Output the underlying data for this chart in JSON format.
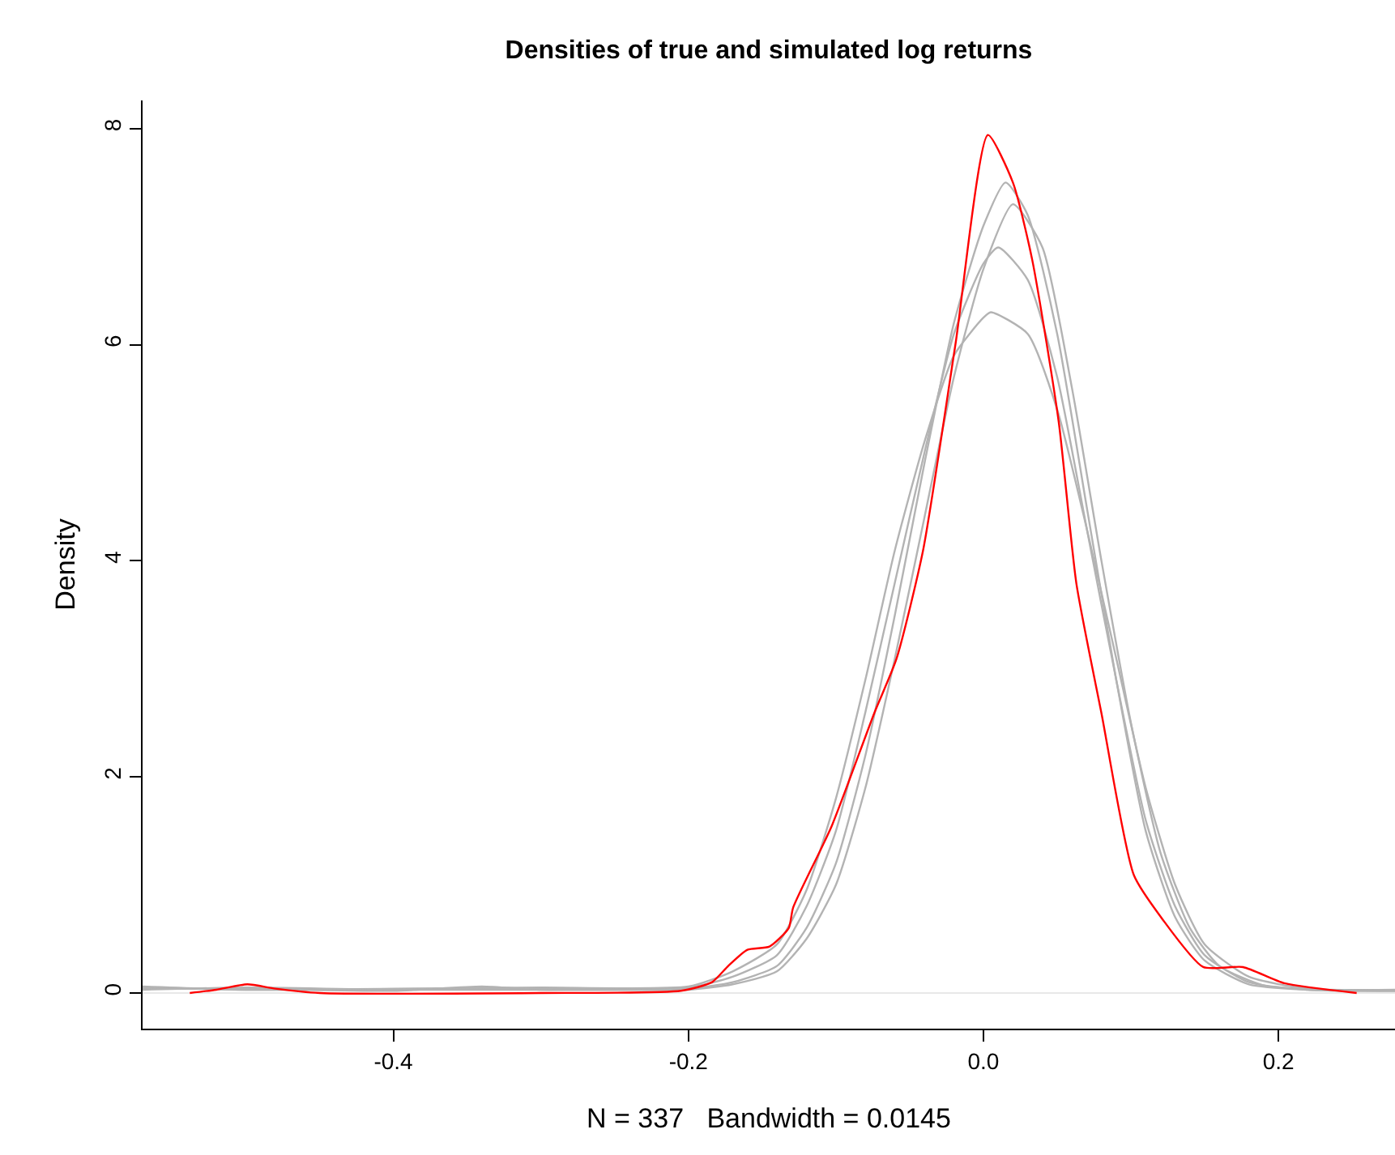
{
  "chart_data": {
    "type": "line",
    "title": "Densities of true and simulated log returns",
    "xlabel": "N = 337   Bandwidth = 0.0145",
    "ylabel": "Density",
    "xlim": [
      -0.57,
      0.279
    ],
    "xticks": [
      -0.4,
      -0.2,
      {
        "value": 0,
        "label": "0.0"
      },
      0.2
    ],
    "ylim": [
      -0.33,
      8.26
    ],
    "yticks": [
      0,
      2,
      4,
      6,
      8
    ],
    "grid": false,
    "marker": "none",
    "line_style": "solid",
    "ref_lines": [
      {
        "axis": "y",
        "value": 0,
        "color": "#e8e8e8"
      }
    ],
    "series": [
      {
        "color": "#b3b3b3",
        "x": [
          -0.57,
          -0.5,
          -0.4,
          -0.3,
          -0.2,
          -0.17,
          -0.14,
          -0.12,
          -0.1,
          -0.08,
          -0.06,
          -0.04,
          -0.02,
          0.0,
          0.01,
          0.03,
          0.05,
          0.07,
          0.09,
          0.11,
          0.13,
          0.15,
          0.18,
          0.22,
          0.279
        ],
        "values": [
          0.05,
          0.03,
          0.03,
          0.03,
          0.05,
          0.15,
          0.35,
          0.8,
          1.5,
          2.6,
          3.8,
          5.0,
          6.1,
          6.75,
          6.9,
          6.6,
          5.7,
          4.3,
          2.9,
          1.6,
          0.8,
          0.35,
          0.1,
          0.03,
          0.02
        ]
      },
      {
        "color": "#b3b3b3",
        "x": [
          -0.57,
          -0.5,
          -0.4,
          -0.34,
          -0.3,
          -0.2,
          -0.17,
          -0.14,
          -0.12,
          -0.1,
          -0.08,
          -0.06,
          -0.04,
          -0.02,
          0.0,
          0.015,
          0.03,
          0.05,
          0.07,
          0.09,
          0.11,
          0.13,
          0.15,
          0.18,
          0.22,
          0.279
        ],
        "values": [
          0.04,
          0.04,
          0.02,
          0.06,
          0.03,
          0.04,
          0.1,
          0.25,
          0.6,
          1.2,
          2.2,
          3.5,
          4.9,
          6.2,
          7.1,
          7.5,
          7.2,
          6.1,
          4.5,
          2.9,
          1.5,
          0.7,
          0.3,
          0.08,
          0.03,
          0.02
        ]
      },
      {
        "color": "#b3b3b3",
        "x": [
          -0.57,
          -0.5,
          -0.4,
          -0.3,
          -0.2,
          -0.17,
          -0.14,
          -0.12,
          -0.1,
          -0.08,
          -0.06,
          -0.04,
          -0.02,
          0.0,
          0.005,
          0.03,
          0.05,
          0.07,
          0.09,
          0.11,
          0.13,
          0.15,
          0.18,
          0.22,
          0.279
        ],
        "values": [
          0.06,
          0.03,
          0.04,
          0.05,
          0.06,
          0.2,
          0.45,
          0.95,
          1.8,
          2.9,
          4.1,
          5.1,
          5.9,
          6.25,
          6.3,
          6.1,
          5.4,
          4.3,
          3.1,
          1.9,
          1.0,
          0.45,
          0.15,
          0.04,
          0.03
        ]
      },
      {
        "color": "#b3b3b3",
        "x": [
          -0.57,
          -0.5,
          -0.4,
          -0.3,
          -0.2,
          -0.17,
          -0.14,
          -0.12,
          -0.1,
          -0.08,
          -0.06,
          -0.04,
          -0.02,
          0.0,
          0.02,
          0.04,
          0.06,
          0.08,
          0.1,
          0.12,
          0.14,
          0.16,
          0.19,
          0.23,
          0.279
        ],
        "values": [
          0.03,
          0.05,
          0.03,
          0.04,
          0.03,
          0.08,
          0.2,
          0.5,
          1.0,
          1.9,
          3.1,
          4.4,
          5.7,
          6.7,
          7.3,
          6.9,
          5.6,
          4.0,
          2.5,
          1.3,
          0.6,
          0.25,
          0.07,
          0.03,
          0.02
        ]
      },
      {
        "color": "#ff0000",
        "x": [
          -0.538,
          -0.52,
          -0.499,
          -0.48,
          -0.45,
          -0.3,
          -0.205,
          -0.184,
          -0.173,
          -0.16,
          -0.145,
          -0.132,
          -0.129,
          -0.103,
          -0.074,
          -0.059,
          -0.041,
          -0.019,
          0.003,
          0.02,
          0.033,
          0.051,
          0.063,
          0.08,
          0.102,
          0.121,
          0.149,
          0.176,
          0.204,
          0.253
        ],
        "values": [
          0.0,
          0.03,
          0.08,
          0.04,
          0.0,
          0.0,
          0.02,
          0.1,
          0.25,
          0.4,
          0.43,
          0.6,
          0.79,
          1.54,
          2.59,
          3.09,
          4.09,
          6.0,
          7.94,
          7.5,
          6.79,
          5.29,
          3.79,
          2.59,
          1.09,
          0.69,
          0.24,
          0.24,
          0.09,
          0.0
        ]
      }
    ]
  }
}
